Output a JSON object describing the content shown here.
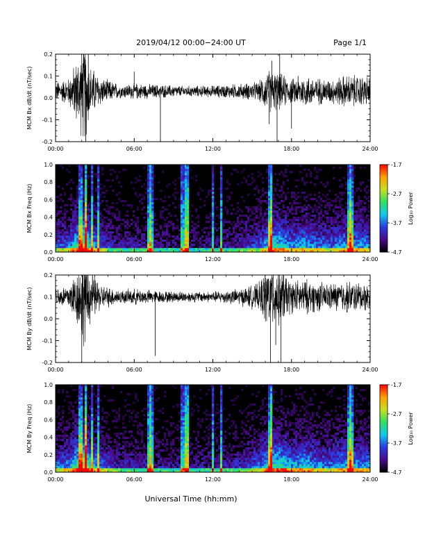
{
  "header": {
    "title": "2019/04/12  00:00−24:00 UT",
    "page": "Page 1/1"
  },
  "footer": {
    "xlabel": "Universal Time (hh:mm)"
  },
  "colorbar": {
    "label": "Log₁₀ Power",
    "ticks": [
      "-1.7",
      "-2.7",
      "-3.7",
      "-4.7"
    ],
    "colors": [
      "#000000",
      "#4a0a8a",
      "#2a3ae0",
      "#10c8f0",
      "#30e060",
      "#c8e020",
      "#ffa000",
      "#ff0000"
    ]
  },
  "chart_data": [
    {
      "type": "line",
      "title": "",
      "ylabel": "MCM Bx dB/dt (nT/sec)",
      "xlabel": "",
      "x_ticks": [
        "00:00",
        "06:00",
        "12:00",
        "18:00",
        "24:00"
      ],
      "y_ticks": [
        "0.2",
        "0.1",
        "0.0",
        "-0.1",
        "-0.2"
      ],
      "xlim": [
        0,
        24
      ],
      "ylim": [
        -0.2,
        0.2
      ],
      "baseline": 0.03,
      "series": [
        {
          "envelope_hours": [
            0,
            1,
            1.8,
            2.2,
            2.6,
            3.5,
            5,
            6,
            8,
            10,
            12,
            14,
            15.5,
            16.2,
            17,
            18,
            19,
            20,
            21,
            22,
            23,
            24
          ],
          "envelope_amplitude": [
            0.035,
            0.05,
            0.14,
            0.2,
            0.1,
            0.05,
            0.025,
            0.03,
            0.025,
            0.02,
            0.022,
            0.028,
            0.035,
            0.08,
            0.07,
            0.045,
            0.06,
            0.05,
            0.045,
            0.06,
            0.06,
            0.055
          ]
        }
      ],
      "spikes": [
        [
          2.3,
          -0.2
        ],
        [
          2.5,
          0.2
        ],
        [
          6.0,
          0.12
        ],
        [
          8.0,
          -0.2
        ],
        [
          16.3,
          -0.12
        ],
        [
          16.5,
          0.17
        ],
        [
          16.9,
          -0.2
        ],
        [
          17.1,
          0.2
        ],
        [
          18.0,
          -0.14
        ],
        [
          18.5,
          0.1
        ]
      ]
    },
    {
      "type": "heatmap",
      "title": "",
      "ylabel": "MCM Bx Freq (Hz)",
      "xlabel": "",
      "x_ticks": [
        "00:00",
        "06:00",
        "12:00",
        "18:00",
        "24:00"
      ],
      "y_ticks": [
        "1.0",
        "0.8",
        "0.6",
        "0.4",
        "0.2",
        "0.0"
      ],
      "xlim": [
        0,
        24
      ],
      "ylim": [
        0,
        1.0
      ],
      "zlim": [
        -4.7,
        -1.7
      ],
      "activity_hours": [
        0,
        1,
        1.8,
        2.2,
        2.6,
        3.5,
        5,
        6,
        8,
        10,
        12,
        14,
        15.5,
        16.2,
        17,
        18,
        19,
        20,
        21,
        22,
        23,
        24
      ],
      "activity_level": [
        0.35,
        0.4,
        0.7,
        0.9,
        0.6,
        0.35,
        0.22,
        0.25,
        0.2,
        0.18,
        0.2,
        0.25,
        0.35,
        0.55,
        0.6,
        0.45,
        0.5,
        0.42,
        0.4,
        0.48,
        0.5,
        0.45
      ],
      "vertical_streak_hours": [
        1.9,
        2.3,
        2.8,
        3.2,
        7.1,
        7.3,
        9.7,
        10.1,
        12.0,
        12.6,
        16.3,
        16.5,
        22.3,
        22.6
      ],
      "bright_streak_hours": [
        2.3,
        7.2,
        10.0,
        16.4,
        22.5
      ]
    },
    {
      "type": "line",
      "title": "",
      "ylabel": "MCM By dB/dt (nT/sec)",
      "xlabel": "",
      "x_ticks": [
        "00:00",
        "06:00",
        "12:00",
        "18:00",
        "24:00"
      ],
      "y_ticks": [
        "0.2",
        "0.1",
        "0.0",
        "-0.1",
        "-0.2"
      ],
      "xlim": [
        0,
        24
      ],
      "ylim": [
        -0.2,
        0.2
      ],
      "baseline": 0.1,
      "series": [
        {
          "envelope_hours": [
            0,
            1,
            1.8,
            2.2,
            2.6,
            3.5,
            5,
            6,
            8,
            10,
            12,
            14,
            15.5,
            16.2,
            17,
            18,
            19,
            20,
            21,
            22,
            23,
            24
          ],
          "envelope_amplitude": [
            0.035,
            0.045,
            0.12,
            0.2,
            0.1,
            0.045,
            0.025,
            0.03,
            0.022,
            0.02,
            0.02,
            0.03,
            0.05,
            0.12,
            0.11,
            0.06,
            0.065,
            0.055,
            0.05,
            0.06,
            0.055,
            0.05
          ]
        }
      ],
      "spikes": [
        [
          2.0,
          -0.2
        ],
        [
          2.2,
          0.2
        ],
        [
          7.6,
          -0.17
        ],
        [
          16.4,
          -0.2
        ],
        [
          16.6,
          0.2
        ],
        [
          16.8,
          -0.12
        ],
        [
          17.2,
          -0.2
        ],
        [
          17.4,
          0.2
        ]
      ]
    },
    {
      "type": "heatmap",
      "title": "",
      "ylabel": "MCM By Freq (Hz)",
      "xlabel": "",
      "x_ticks": [
        "00:00",
        "06:00",
        "12:00",
        "18:00",
        "24:00"
      ],
      "y_ticks": [
        "1.0",
        "0.8",
        "0.6",
        "0.4",
        "0.2",
        "0.0"
      ],
      "xlim": [
        0,
        24
      ],
      "ylim": [
        0,
        1.0
      ],
      "zlim": [
        -4.7,
        -1.7
      ],
      "activity_hours": [
        0,
        1,
        1.8,
        2.2,
        2.6,
        3.5,
        5,
        6,
        8,
        10,
        12,
        14,
        15.5,
        16.2,
        17,
        18,
        19,
        20,
        21,
        22,
        23,
        24
      ],
      "activity_level": [
        0.4,
        0.45,
        0.75,
        0.95,
        0.65,
        0.4,
        0.25,
        0.28,
        0.22,
        0.2,
        0.22,
        0.28,
        0.4,
        0.6,
        0.65,
        0.5,
        0.55,
        0.45,
        0.42,
        0.5,
        0.5,
        0.45
      ],
      "vertical_streak_hours": [
        1.9,
        2.3,
        2.8,
        3.2,
        7.1,
        7.3,
        9.7,
        10.1,
        12.0,
        12.6,
        16.3,
        16.5,
        22.3,
        22.6
      ],
      "bright_streak_hours": [
        2.3,
        7.2,
        10.0,
        16.4,
        22.5
      ]
    }
  ]
}
